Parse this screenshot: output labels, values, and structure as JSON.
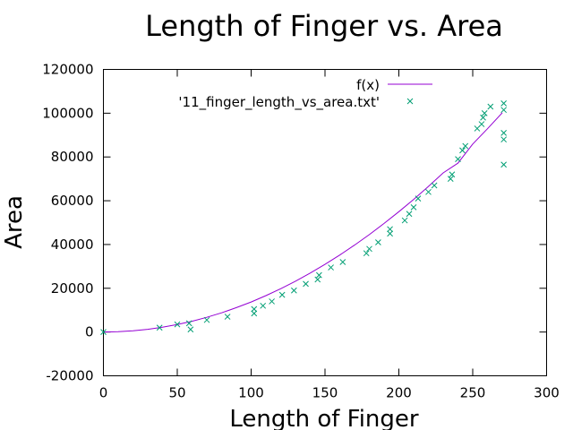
{
  "chart_data": {
    "type": "scatter",
    "title": "Length of Finger vs. Area",
    "xlabel": "Length of Finger",
    "ylabel": "Area",
    "xlim": [
      0,
      300
    ],
    "ylim": [
      -20000,
      120000
    ],
    "xticks": [
      0,
      50,
      100,
      150,
      200,
      250,
      300
    ],
    "yticks": [
      -20000,
      0,
      20000,
      40000,
      60000,
      80000,
      100000,
      120000
    ],
    "grid": false,
    "legend_position": "top-right",
    "series": [
      {
        "name": "f(x)",
        "kind": "line",
        "color": "#9400d3",
        "x": [
          0,
          10,
          20,
          30,
          40,
          50,
          60,
          70,
          80,
          90,
          100,
          110,
          120,
          130,
          140,
          150,
          160,
          170,
          180,
          190,
          200,
          210,
          220,
          230,
          240,
          250,
          260,
          270
        ],
        "y": [
          0,
          137,
          550,
          1237,
          2199,
          3436,
          4948,
          6735,
          8797,
          11133,
          13745,
          16631,
          19793,
          23229,
          26940,
          30926,
          35187,
          39722,
          44533,
          49618,
          54978,
          60613,
          66523,
          72708,
          77168,
          85902,
          92912,
          100196
        ]
      },
      {
        "name": "'11_finger_length_vs_area.txt'",
        "kind": "scatter",
        "marker": "x",
        "color": "#009e73",
        "x": [
          0,
          38,
          50,
          58,
          59,
          70,
          84,
          102,
          102,
          108,
          114,
          121,
          129,
          137,
          145,
          146,
          154,
          162,
          178,
          180,
          186,
          194,
          194,
          204,
          207,
          210,
          213,
          220,
          224,
          235,
          236,
          240,
          243,
          245,
          253,
          256,
          257,
          258,
          262,
          271,
          271,
          271,
          271,
          271
        ],
        "y": [
          0,
          2000,
          3500,
          4000,
          1200,
          5500,
          7000,
          10500,
          8500,
          12000,
          14000,
          17000,
          19000,
          22000,
          24000,
          26000,
          29500,
          32000,
          36000,
          38000,
          41000,
          45000,
          47000,
          51000,
          54000,
          57000,
          61000,
          64000,
          67000,
          70000,
          72000,
          79000,
          83000,
          85000,
          93000,
          95000,
          98000,
          100000,
          103000,
          104500,
          101500,
          91000,
          88000,
          76500
        ]
      }
    ]
  }
}
